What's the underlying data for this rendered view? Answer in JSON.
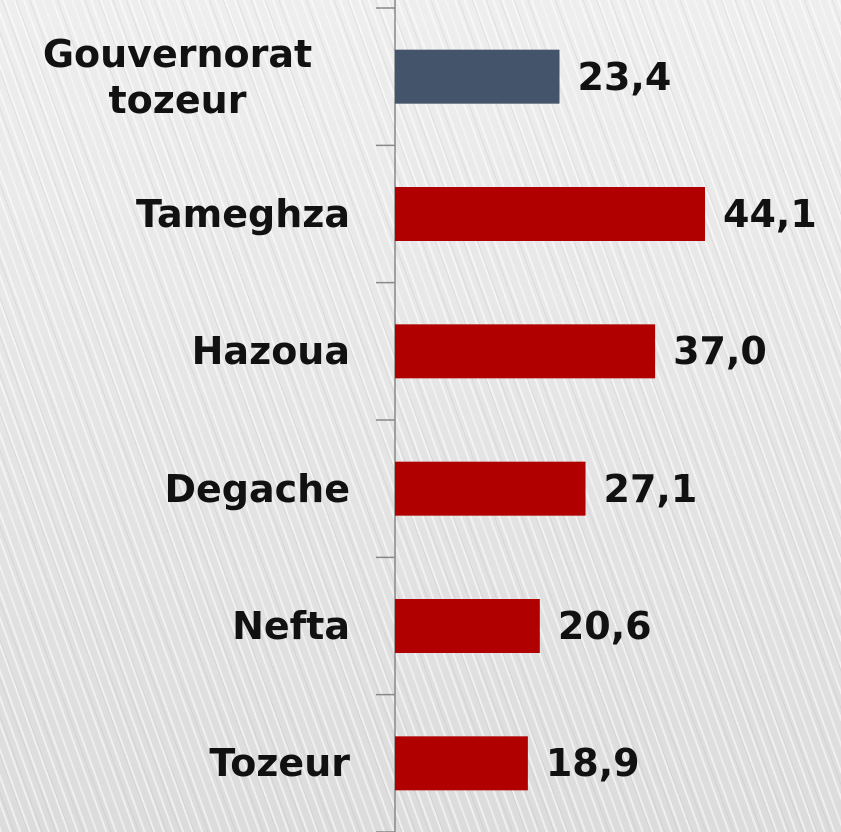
{
  "chart_data": {
    "type": "bar",
    "orientation": "horizontal",
    "categories": [
      "Gouvernorat tozeur",
      "Tameghza",
      "Hazoua",
      "Degache",
      "Nefta",
      "Tozeur"
    ],
    "values": [
      23.4,
      44.1,
      37.0,
      27.1,
      20.6,
      18.9
    ],
    "value_labels": [
      "23,4",
      "44,1",
      "37,0",
      "27,1",
      "20,6",
      "18,9"
    ],
    "colors": [
      "#44546a",
      "#b00000",
      "#b00000",
      "#b00000",
      "#b00000",
      "#b00000"
    ],
    "xlim": [
      0,
      50
    ]
  }
}
